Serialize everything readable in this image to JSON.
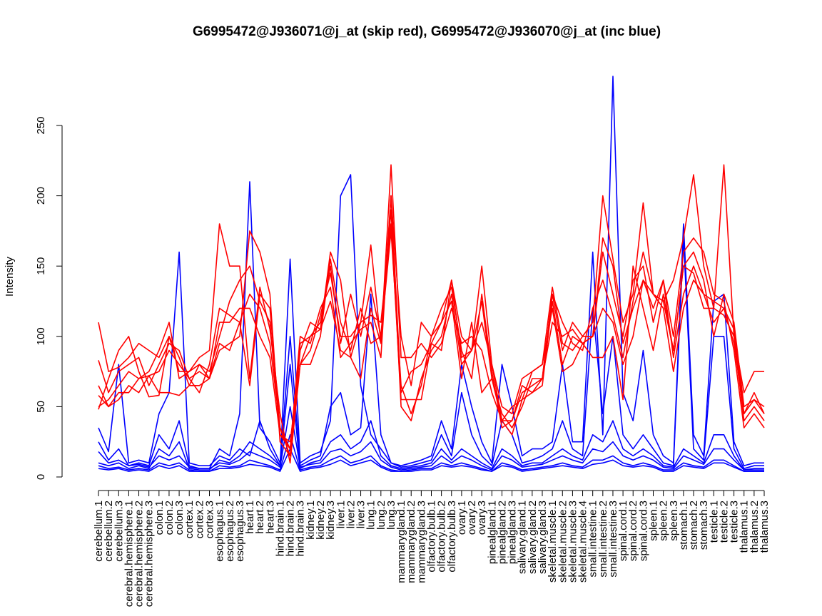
{
  "chart_data": {
    "type": "line",
    "title": "G6995472@J936071@j_at (skip red), G6995472@J936070@j_at (inc blue)",
    "xlabel": "",
    "ylabel": "Intensity",
    "ylim": [
      0,
      290
    ],
    "yticks": [
      0,
      50,
      100,
      150,
      200,
      250
    ],
    "grid": false,
    "legend": "none",
    "colors": {
      "skip": "#ff0000",
      "inc": "#0000ff",
      "axis": "#000000"
    },
    "categories": [
      "cerebellum.1",
      "cerebellum.2",
      "cerebellum.3",
      "cerebral.hemisphere.1",
      "cerebral.hemisphere.2",
      "cerebral.hemisphere.3",
      "colon.1",
      "colon.2",
      "colon.3",
      "cortex.1",
      "cortex.2",
      "cortex.3",
      "esophagus.1",
      "esophagus.2",
      "esophagus.3",
      "heart.1",
      "heart.2",
      "heart.3",
      "hind.brain.1",
      "hind.brain.2",
      "hind.brain.3",
      "kidney.1",
      "kidney.2",
      "kidney.3",
      "liver.1",
      "liver.2",
      "liver.3",
      "lung.1",
      "lung.2",
      "lung.3",
      "mammarygland.1",
      "mammarygland.2",
      "mammarygland.3",
      "olfactory.bulb.1",
      "olfactory.bulb.2",
      "olfactory.bulb.3",
      "ovary.1",
      "ovary.2",
      "ovary.3",
      "pinealgland.1",
      "pinealgland.2",
      "pinealgland.3",
      "salivary.gland.1",
      "salivary.gland.2",
      "salivary.gland.3",
      "skeletal.muscle.1",
      "skeletal.muscle.2",
      "skeletal.muscle.3",
      "skeletal.muscle.4",
      "small.intestine.1",
      "small.intestine.2",
      "small.intestine.3",
      "spinal.cord.1",
      "spinal.cord.2",
      "spinal.cord.3",
      "spleen.1",
      "spleen.2",
      "spleen.3",
      "stomach.1",
      "stomach.2",
      "stomach.3",
      "testicle.1",
      "testicle.2",
      "testicle.3",
      "thalamus.1",
      "thalamus.2",
      "thalamus.3"
    ],
    "series": [
      {
        "group": "skip",
        "values": [
          110,
          75,
          78,
          85,
          95,
          90,
          85,
          100,
          85,
          65,
          80,
          70,
          95,
          90,
          110,
          65,
          130,
          120,
          35,
          15,
          90,
          110,
          105,
          125,
          90,
          85,
          70,
          120,
          95,
          222,
          85,
          85,
          95,
          85,
          95,
          120,
          95,
          100,
          90,
          60,
          40,
          50,
          55,
          75,
          80,
          120,
          75,
          80,
          95,
          85,
          85,
          100,
          55,
          150,
          120,
          90,
          130,
          90,
          150,
          160,
          140,
          100,
          130,
          110,
          50,
          55,
          50
        ]
      },
      {
        "group": "skip",
        "values": [
          83,
          60,
          75,
          80,
          85,
          65,
          80,
          95,
          90,
          70,
          60,
          80,
          120,
          115,
          110,
          130,
          120,
          95,
          35,
          20,
          100,
          95,
          120,
          135,
          85,
          95,
          105,
          110,
          85,
          200,
          60,
          75,
          80,
          95,
          110,
          125,
          70,
          110,
          60,
          70,
          45,
          35,
          50,
          70,
          70,
          110,
          100,
          105,
          95,
          100,
          120,
          110,
          80,
          100,
          140,
          130,
          120,
          75,
          120,
          140,
          130,
          110,
          120,
          95,
          45,
          60,
          45
        ]
      },
      {
        "group": "skip",
        "values": [
          65,
          50,
          60,
          60,
          70,
          75,
          90,
          110,
          70,
          75,
          80,
          75,
          100,
          125,
          140,
          150,
          125,
          110,
          30,
          25,
          80,
          80,
          100,
          155,
          110,
          90,
          120,
          95,
          100,
          190,
          50,
          40,
          70,
          90,
          100,
          130,
          80,
          90,
          110,
          80,
          40,
          40,
          65,
          60,
          70,
          130,
          110,
          95,
          90,
          120,
          140,
          115,
          85,
          125,
          160,
          130,
          125,
          90,
          150,
          145,
          120,
          120,
          115,
          100,
          40,
          50,
          40
        ]
      },
      {
        "group": "skip",
        "values": [
          50,
          55,
          65,
          75,
          70,
          72,
          60,
          60,
          58,
          65,
          65,
          70,
          90,
          95,
          100,
          175,
          160,
          130,
          25,
          15,
          95,
          100,
          110,
          150,
          95,
          130,
          100,
          135,
          100,
          175,
          65,
          45,
          65,
          100,
          120,
          135,
          90,
          70,
          130,
          75,
          35,
          40,
          60,
          65,
          70,
          130,
          90,
          110,
          100,
          100,
          160,
          130,
          100,
          140,
          150,
          110,
          140,
          100,
          160,
          170,
          160,
          130,
          125,
          90,
          35,
          45,
          35
        ]
      },
      {
        "group": "skip",
        "values": [
          58,
          50,
          55,
          65,
          60,
          72,
          75,
          90,
          80,
          70,
          75,
          70,
          110,
          110,
          120,
          120,
          100,
          85,
          30,
          20,
          80,
          90,
          115,
          145,
          100,
          100,
          110,
          115,
          110,
          180,
          55,
          55,
          55,
          95,
          90,
          140,
          85,
          90,
          125,
          70,
          40,
          30,
          55,
          60,
          65,
          125,
          80,
          100,
          95,
          100,
          170,
          150,
          95,
          120,
          140,
          120,
          140,
          85,
          130,
          150,
          130,
          125,
          120,
          105,
          45,
          55,
          45
        ]
      },
      {
        "group": "skip",
        "values": [
          48,
          70,
          90,
          100,
          75,
          57,
          58,
          100,
          75,
          75,
          85,
          90,
          180,
          150,
          150,
          70,
          135,
          105,
          45,
          10,
          80,
          100,
          105,
          160,
          140,
          85,
          110,
          165,
          95,
          200,
          100,
          65,
          110,
          100,
          110,
          140,
          100,
          90,
          150,
          80,
          50,
          45,
          70,
          75,
          80,
          135,
          95,
          90,
          100,
          110,
          200,
          155,
          110,
          130,
          195,
          130,
          125,
          140,
          170,
          215,
          150,
          120,
          222,
          100,
          60,
          75,
          75
        ]
      }
    ],
    "series_inc": [
      {
        "group": "inc",
        "values": [
          35,
          18,
          80,
          10,
          12,
          10,
          45,
          60,
          160,
          10,
          8,
          8,
          15,
          12,
          20,
          15,
          40,
          20,
          8,
          155,
          10,
          15,
          18,
          40,
          200,
          215,
          65,
          30,
          20,
          10,
          8,
          10,
          12,
          15,
          40,
          20,
          80,
          50,
          25,
          10,
          80,
          50,
          15,
          20,
          20,
          25,
          80,
          25,
          25,
          160,
          30,
          285,
          60,
          40,
          90,
          30,
          15,
          10,
          180,
          30,
          15,
          125,
          130,
          25,
          8,
          10,
          10
        ]
      },
      {
        "group": "inc",
        "values": [
          25,
          12,
          20,
          8,
          10,
          8,
          30,
          20,
          40,
          8,
          6,
          6,
          20,
          15,
          45,
          210,
          35,
          25,
          10,
          100,
          8,
          12,
          15,
          50,
          60,
          30,
          35,
          130,
          30,
          10,
          7,
          8,
          10,
          12,
          30,
          15,
          60,
          30,
          15,
          8,
          40,
          30,
          10,
          12,
          15,
          20,
          40,
          20,
          15,
          120,
          45,
          100,
          30,
          20,
          30,
          20,
          10,
          8,
          170,
          20,
          12,
          100,
          100,
          20,
          6,
          8,
          8
        ]
      },
      {
        "group": "inc",
        "values": [
          10,
          8,
          10,
          6,
          8,
          6,
          20,
          15,
          25,
          6,
          5,
          5,
          12,
          10,
          15,
          25,
          20,
          15,
          8,
          80,
          6,
          10,
          12,
          25,
          30,
          20,
          25,
          40,
          15,
          8,
          6,
          7,
          8,
          10,
          20,
          12,
          20,
          15,
          10,
          6,
          20,
          15,
          8,
          10,
          10,
          15,
          20,
          15,
          12,
          30,
          25,
          40,
          20,
          15,
          20,
          15,
          8,
          7,
          20,
          15,
          10,
          30,
          30,
          15,
          5,
          6,
          6
        ]
      },
      {
        "group": "inc",
        "values": [
          18,
          10,
          12,
          8,
          9,
          7,
          15,
          12,
          15,
          7,
          6,
          6,
          10,
          9,
          12,
          18,
          15,
          12,
          7,
          50,
          7,
          9,
          10,
          18,
          20,
          15,
          18,
          25,
          12,
          7,
          5,
          6,
          7,
          8,
          15,
          10,
          15,
          12,
          8,
          5,
          15,
          12,
          7,
          8,
          9,
          12,
          15,
          12,
          10,
          20,
          18,
          25,
          15,
          12,
          15,
          12,
          7,
          6,
          15,
          12,
          9,
          20,
          20,
          12,
          5,
          5,
          5
        ]
      },
      {
        "group": "inc",
        "values": [
          8,
          6,
          7,
          5,
          6,
          5,
          10,
          8,
          10,
          5,
          4,
          4,
          8,
          7,
          8,
          12,
          10,
          8,
          5,
          30,
          5,
          7,
          8,
          12,
          15,
          10,
          12,
          15,
          8,
          5,
          4,
          5,
          6,
          6,
          10,
          8,
          10,
          8,
          6,
          4,
          10,
          8,
          5,
          6,
          7,
          8,
          10,
          8,
          7,
          12,
          12,
          15,
          10,
          8,
          10,
          8,
          5,
          5,
          10,
          8,
          7,
          12,
          12,
          8,
          4,
          4,
          4
        ]
      },
      {
        "group": "inc",
        "values": [
          6,
          5,
          6,
          4,
          5,
          4,
          8,
          6,
          8,
          4,
          4,
          4,
          6,
          6,
          7,
          9,
          8,
          7,
          4,
          20,
          4,
          6,
          7,
          9,
          12,
          8,
          10,
          12,
          7,
          4,
          4,
          4,
          5,
          5,
          8,
          7,
          8,
          7,
          5,
          4,
          8,
          7,
          4,
          5,
          6,
          7,
          8,
          7,
          6,
          9,
          10,
          12,
          8,
          7,
          8,
          7,
          4,
          4,
          8,
          7,
          6,
          10,
          10,
          7,
          4,
          4,
          4
        ]
      }
    ]
  }
}
